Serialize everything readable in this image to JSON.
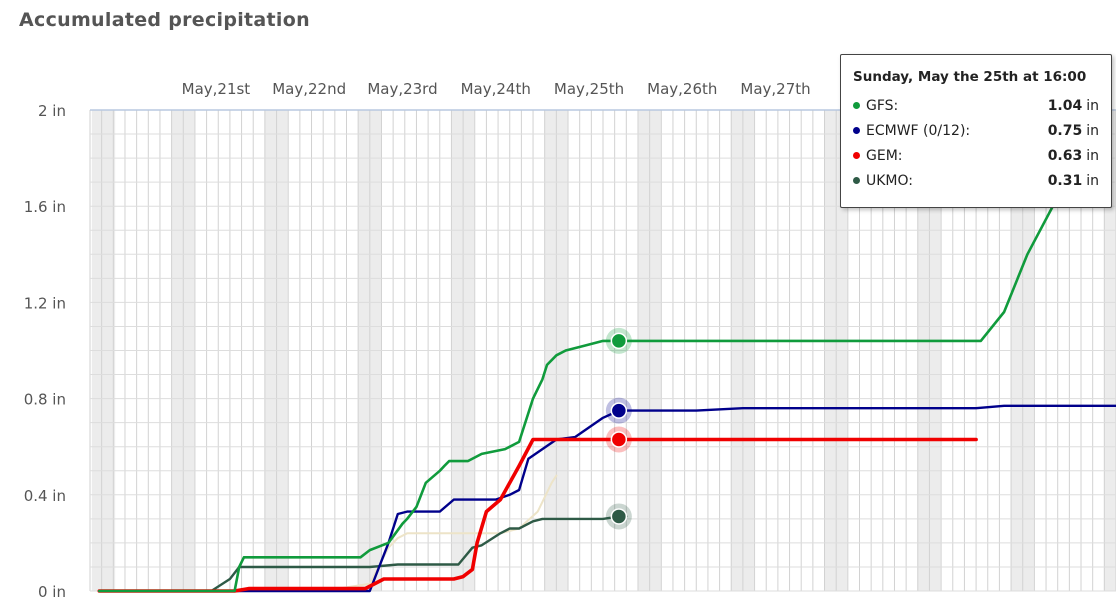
{
  "title": "Accumulated precipitation",
  "chart_data": {
    "type": "line",
    "title": "Accumulated precipitation",
    "unit": "in",
    "ylim": [
      0,
      2
    ],
    "yticks": [
      {
        "value": 0,
        "label": "0 in"
      },
      {
        "value": 0.4,
        "label": "0.4 in"
      },
      {
        "value": 0.8,
        "label": "0.8 in"
      },
      {
        "value": 1.2,
        "label": "1.2 in"
      },
      {
        "value": 1.6,
        "label": "1.6 in"
      },
      {
        "value": 2.0,
        "label": "2 in"
      }
    ],
    "xlim": [
      0,
      11
    ],
    "xticks": [
      {
        "value": 1.35,
        "label": "May,21st"
      },
      {
        "value": 2.35,
        "label": "May,22nd"
      },
      {
        "value": 3.35,
        "label": "May,23rd"
      },
      {
        "value": 4.35,
        "label": "May,24th"
      },
      {
        "value": 5.35,
        "label": "May,25th"
      },
      {
        "value": 6.35,
        "label": "May,26th"
      },
      {
        "value": 7.35,
        "label": "May,27th"
      }
    ],
    "grid": true,
    "highlight_x": 5.67,
    "series": [
      {
        "name": "GFS",
        "color": "#109b3c",
        "width": 2.6,
        "x": [
          0.1,
          1.45,
          1.55,
          1.6,
          1.65,
          2.0,
          2.5,
          2.9,
          3.0,
          3.2,
          3.35,
          3.4,
          3.5,
          3.6,
          3.75,
          3.8,
          3.85,
          3.9,
          4.05,
          4.2,
          4.45,
          4.6,
          4.75,
          4.85,
          4.9,
          5.0,
          5.1,
          5.3,
          5.5,
          5.67,
          6.5,
          7.5,
          8.5,
          9.5,
          9.55,
          9.8,
          10.05,
          10.35,
          10.6
        ],
        "values": [
          0,
          0,
          0,
          0.1,
          0.14,
          0.14,
          0.14,
          0.14,
          0.17,
          0.2,
          0.28,
          0.3,
          0.35,
          0.45,
          0.5,
          0.52,
          0.54,
          0.54,
          0.54,
          0.57,
          0.59,
          0.62,
          0.8,
          0.88,
          0.94,
          0.98,
          1.0,
          1.02,
          1.04,
          1.04,
          1.04,
          1.04,
          1.04,
          1.04,
          1.04,
          1.16,
          1.4,
          1.62,
          1.72
        ]
      },
      {
        "name": "ECMWF (0/12)",
        "color": "#00008b",
        "width": 2.4,
        "x": [
          0.1,
          1.35,
          1.5,
          1.6,
          3.0,
          3.2,
          3.3,
          3.4,
          3.75,
          3.9,
          4.1,
          4.35,
          4.5,
          4.6,
          4.7,
          5.0,
          5.2,
          5.5,
          5.67,
          6.5,
          7.0,
          8.0,
          9.5,
          9.8,
          10.5,
          11.0
        ],
        "values": [
          0,
          0,
          0,
          0,
          0,
          0.2,
          0.32,
          0.33,
          0.33,
          0.38,
          0.38,
          0.38,
          0.4,
          0.42,
          0.55,
          0.63,
          0.64,
          0.72,
          0.75,
          0.75,
          0.76,
          0.76,
          0.76,
          0.77,
          0.77,
          0.77
        ]
      },
      {
        "name": "GEM",
        "color": "#f00000",
        "width": 3.6,
        "x": [
          0.1,
          1.35,
          1.55,
          1.7,
          2.0,
          2.9,
          2.95,
          3.15,
          3.25,
          3.5,
          3.9,
          4.0,
          4.1,
          4.15,
          4.25,
          4.4,
          4.6,
          4.75,
          4.85,
          5.0,
          5.67,
          6.5,
          7.5,
          8.5,
          9.5
        ],
        "values": [
          0,
          0,
          0,
          0.01,
          0.01,
          0.01,
          0.01,
          0.05,
          0.05,
          0.05,
          0.05,
          0.06,
          0.09,
          0.2,
          0.33,
          0.38,
          0.52,
          0.63,
          0.63,
          0.63,
          0.63,
          0.63,
          0.63,
          0.63,
          0.63
        ]
      },
      {
        "name": "UKMO",
        "color": "#2e5a46",
        "width": 2.4,
        "x": [
          0.1,
          1.3,
          1.5,
          1.6,
          2.0,
          2.7,
          3.0,
          3.3,
          3.6,
          3.95,
          4.1,
          4.2,
          4.4,
          4.5,
          4.6,
          4.75,
          4.85,
          4.95,
          5.2,
          5.5,
          5.67,
          5.75
        ],
        "values": [
          0,
          0,
          0.05,
          0.1,
          0.1,
          0.1,
          0.1,
          0.11,
          0.11,
          0.11,
          0.18,
          0.19,
          0.24,
          0.26,
          0.26,
          0.29,
          0.3,
          0.3,
          0.3,
          0.3,
          0.31,
          0.31
        ]
      },
      {
        "name": "",
        "color": "#ede4c8",
        "width": 2,
        "x": [
          2.5,
          3.0,
          3.2,
          3.3,
          3.4,
          3.8,
          4.1,
          4.4,
          4.6,
          4.8,
          4.95,
          5.0
        ],
        "values": [
          0,
          0.03,
          0.18,
          0.22,
          0.24,
          0.24,
          0.24,
          0.24,
          0.26,
          0.33,
          0.45,
          0.48
        ]
      }
    ]
  },
  "tooltip": {
    "title": "Sunday, May the 25th at 16:00",
    "unit": "in",
    "rows": [
      {
        "name": "GFS:",
        "value": "1.04",
        "color": "#109b3c"
      },
      {
        "name": "ECMWF (0/12):",
        "value": "0.75",
        "color": "#00008b"
      },
      {
        "name": "GEM:",
        "value": "0.63",
        "color": "#f00000"
      },
      {
        "name": "UKMO:",
        "value": "0.31",
        "color": "#2e5a46"
      }
    ]
  }
}
